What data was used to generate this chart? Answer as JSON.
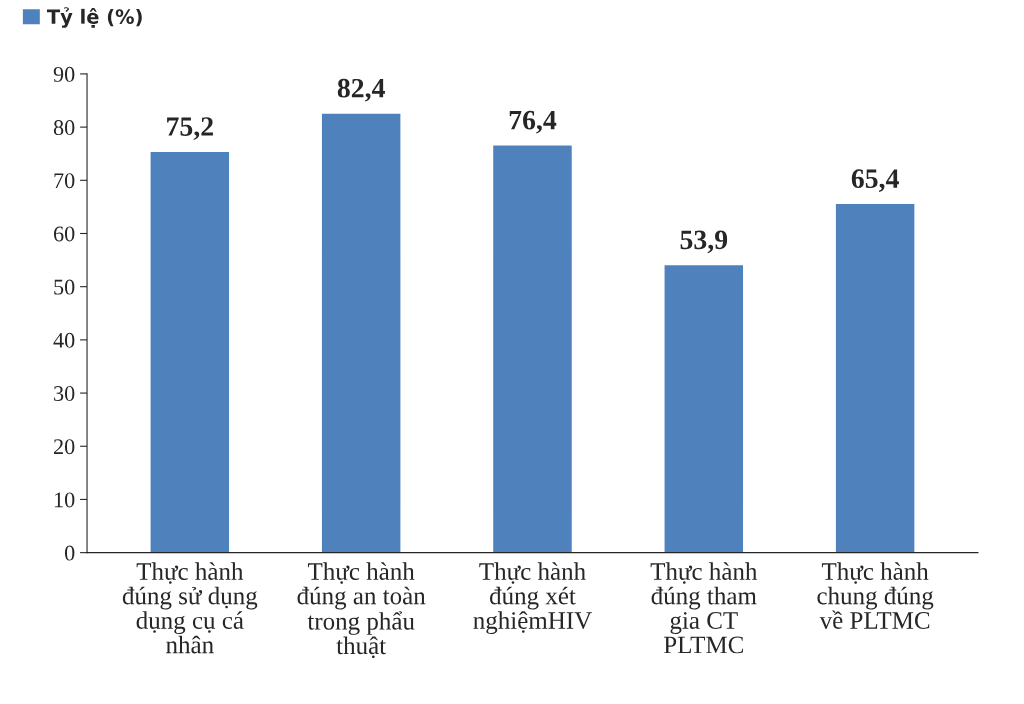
{
  "chart_data": {
    "type": "bar",
    "categories": [
      "Thực hành\nđúng sử dụng\ndụng cụ cá\nnhân",
      "Thực hành\nđúng an toàn\ntrong phẩu\nthuật",
      "Thực hành\nđúng xét\nnghiệmHIV",
      "Thực hành\nđúng tham\ngia CT\nPLTMC",
      "Thực hành\nchung đúng\nvề PLTMC"
    ],
    "series": [
      {
        "name": "Tỷ lệ (%)",
        "color": "#4f81bd",
        "values": [
          75.2,
          82.4,
          76.4,
          53.9,
          65.4
        ]
      }
    ],
    "value_labels": [
      "75,2",
      "82,4",
      "76,4",
      "53,9",
      "65,4"
    ],
    "ylim": [
      0,
      90
    ],
    "yticks": [
      0,
      10,
      20,
      30,
      40,
      50,
      60,
      70,
      80,
      90
    ],
    "grid": false,
    "legend": "top left"
  }
}
